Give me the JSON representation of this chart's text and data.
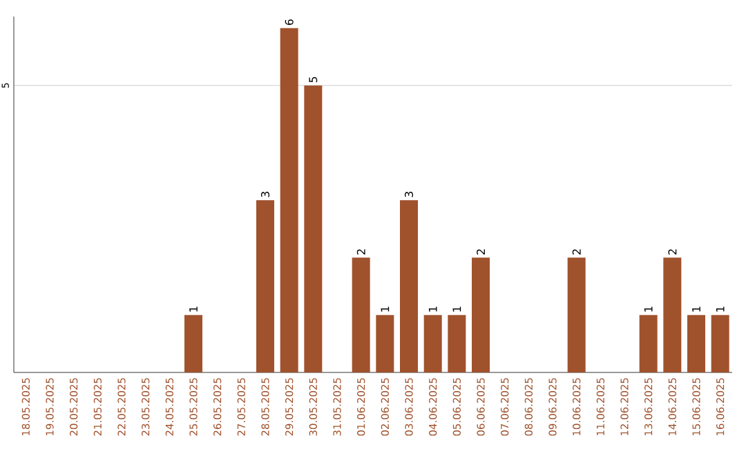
{
  "chart_data": {
    "type": "bar",
    "categories": [
      "18.05.2025",
      "19.05.2025",
      "20.05.2025",
      "21.05.2025",
      "22.05.2025",
      "23.05.2025",
      "24.05.2025",
      "25.05.2025",
      "26.05.2025",
      "27.05.2025",
      "28.05.2025",
      "29.05.2025",
      "30.05.2025",
      "31.05.2025",
      "01.06.2025",
      "02.06.2025",
      "03.06.2025",
      "04.06.2025",
      "05.06.2025",
      "06.06.2025",
      "07.06.2025",
      "08.06.2025",
      "09.06.2025",
      "10.06.2025",
      "11.06.2025",
      "12.06.2025",
      "13.06.2025",
      "14.06.2025",
      "15.06.2025",
      "16.06.2025"
    ],
    "values": [
      0,
      0,
      0,
      0,
      0,
      0,
      0,
      1,
      0,
      0,
      3,
      6,
      5,
      0,
      2,
      1,
      3,
      1,
      1,
      2,
      0,
      0,
      0,
      2,
      0,
      0,
      1,
      2,
      1,
      1
    ],
    "value_labels": [
      null,
      null,
      null,
      null,
      null,
      null,
      null,
      "1",
      null,
      null,
      "3",
      "6",
      "5",
      null,
      "2",
      "1",
      "3",
      "1",
      "1",
      "2",
      null,
      null,
      null,
      "2",
      null,
      null,
      "1",
      "2",
      "1",
      "1"
    ],
    "color": "#a0522d",
    "ylim": [
      0,
      6.2
    ],
    "yticks": [
      5
    ],
    "grid": "y"
  }
}
